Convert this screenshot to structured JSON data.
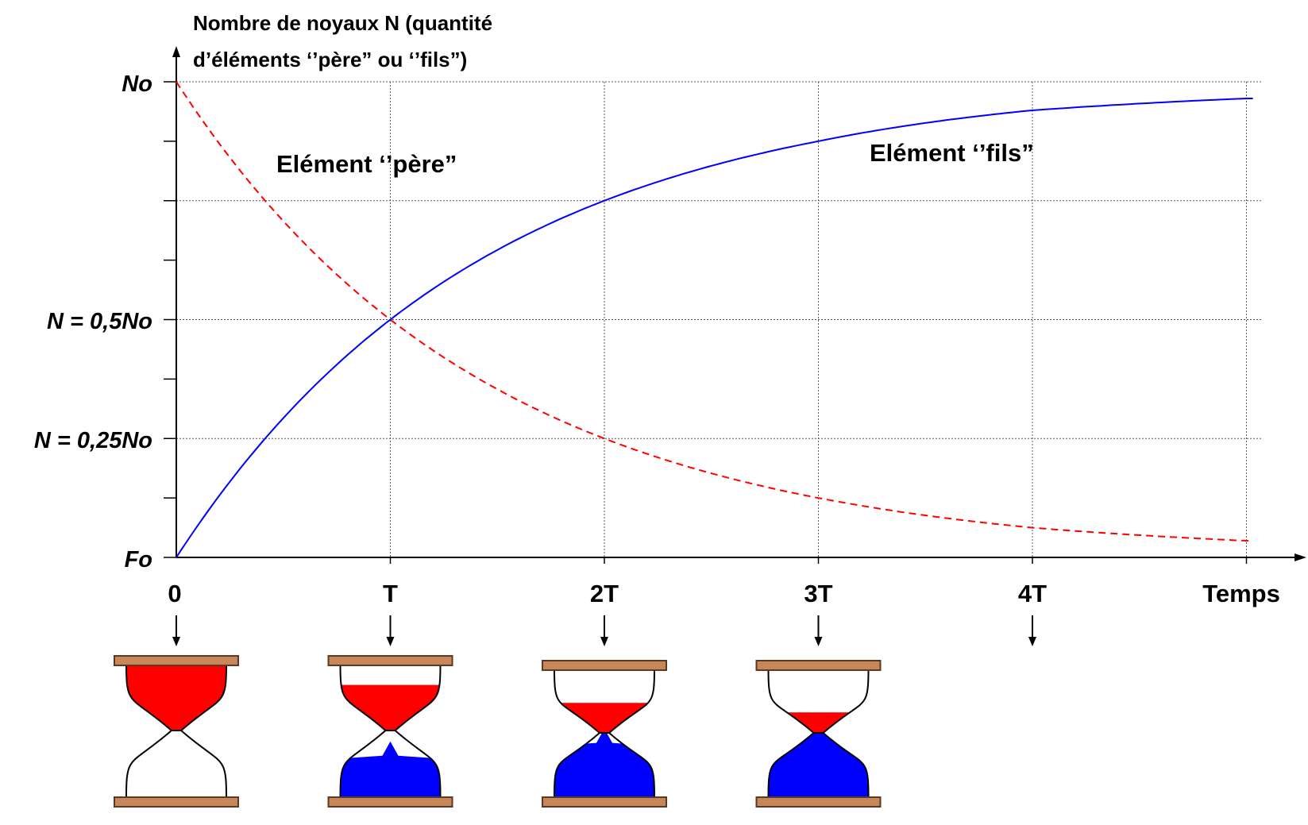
{
  "title": "Nombre de noyaux N  (quantité d’éléments ‘’père” ou ‘’fils”)",
  "title_line1": "Nombre de noyaux N  (quantité",
  "title_line2": "d’éléments ‘’père” ou ‘’fils”)",
  "y_labels": {
    "top": "No",
    "half": "N = 0,5No",
    "quarter": "N = 0,25No",
    "origin": "Fo"
  },
  "x_labels": [
    "0",
    "T",
    "2T",
    "3T",
    "4T",
    "Temps"
  ],
  "series_labels": {
    "parent": "Elément ‘’père”",
    "daughter": "Elément ‘’fils”"
  },
  "colors": {
    "parent": "#ff0000",
    "daughter": "#0000ff",
    "plank": "#c8875a",
    "grid": "#555555"
  },
  "chart_data": {
    "type": "line",
    "x_unit": "T",
    "x": [
      0,
      1,
      2,
      3,
      4,
      5
    ],
    "series": [
      {
        "name": "Elément ‘’père”",
        "values": [
          1,
          0.5,
          0.25,
          0.125,
          0.0625,
          0.035
        ],
        "style": "dashed",
        "color": "#ff0000"
      },
      {
        "name": "Elément ‘’fils”",
        "values": [
          0,
          0.5,
          0.75,
          0.875,
          0.94,
          0.965
        ],
        "style": "solid",
        "color": "#0000ff"
      }
    ],
    "ylim": [
      0,
      1
    ],
    "xlim": [
      0,
      5
    ]
  },
  "hourglasses": [
    {
      "time": "0",
      "parent_fraction": 1.0,
      "daughter_fraction": 0.0
    },
    {
      "time": "T",
      "parent_fraction": 0.5,
      "daughter_fraction": 0.5
    },
    {
      "time": "2T",
      "parent_fraction": 0.25,
      "daughter_fraction": 0.75
    },
    {
      "time": "3T",
      "parent_fraction": 0.125,
      "daughter_fraction": 0.875
    }
  ],
  "arrows_at": [
    "0",
    "T",
    "2T",
    "3T",
    "4T"
  ]
}
